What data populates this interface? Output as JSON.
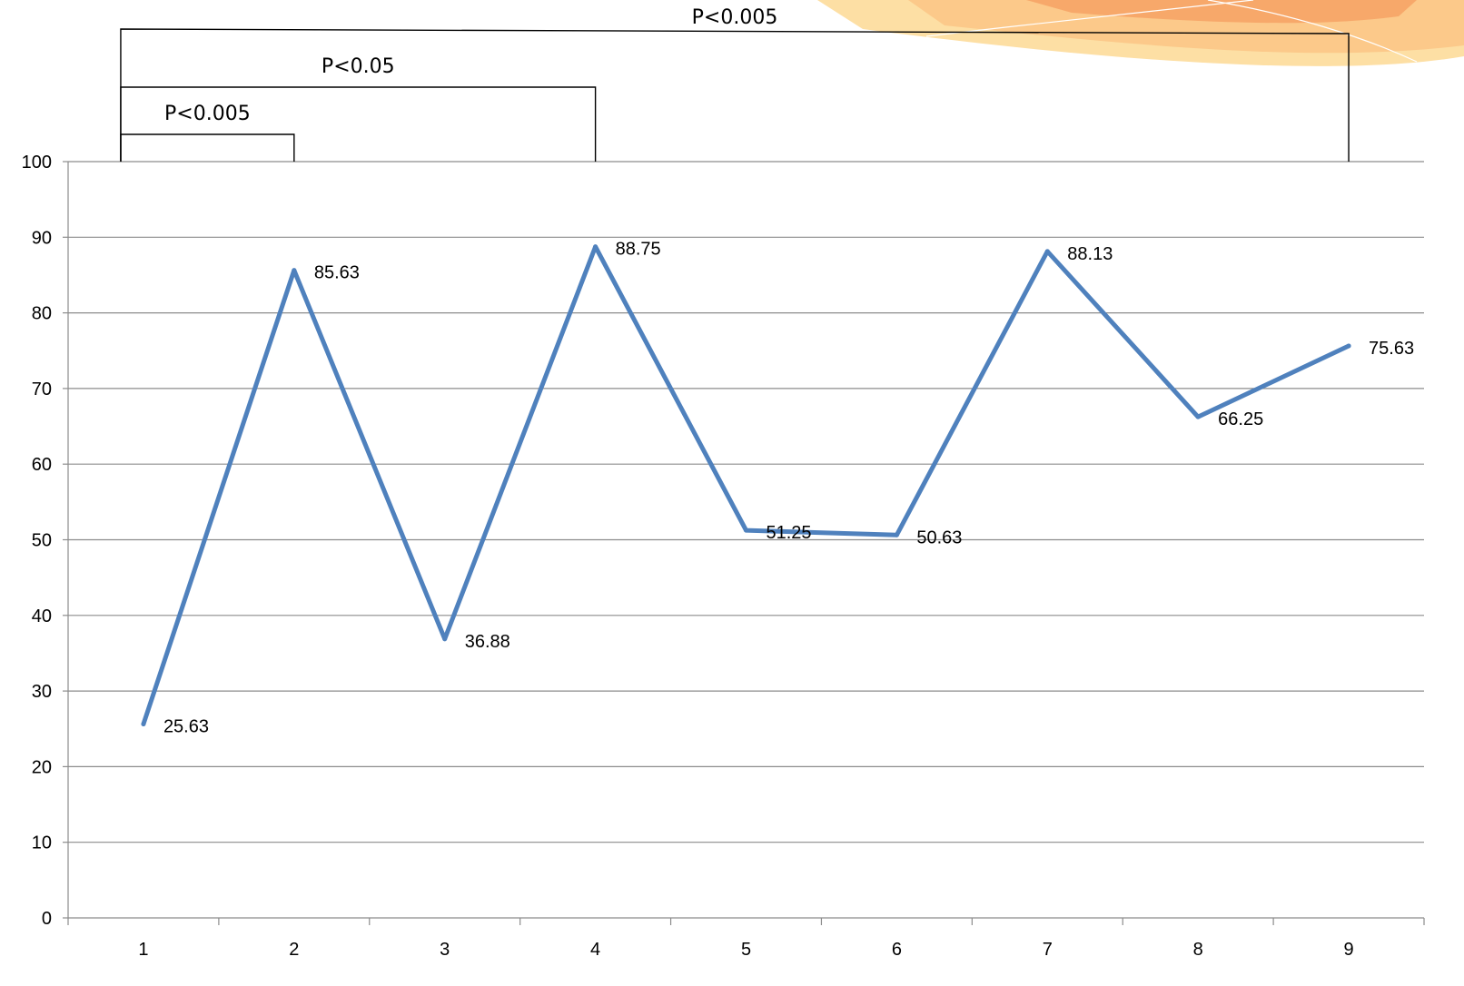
{
  "chart_data": {
    "type": "line",
    "categories": [
      "1",
      "2",
      "3",
      "4",
      "5",
      "6",
      "7",
      "8",
      "9"
    ],
    "series": [
      {
        "values": [
          25.63,
          85.63,
          36.88,
          88.75,
          51.25,
          50.63,
          88.13,
          66.25,
          75.63
        ]
      }
    ],
    "data_labels": [
      "25.63",
      "85.63",
      "36.88",
      "88.75",
      "51.25",
      "50.63",
      "88.13",
      "66.25",
      "75.63"
    ],
    "y_ticks": [
      "0",
      "10",
      "20",
      "30",
      "40",
      "50",
      "60",
      "70",
      "80",
      "90",
      "100"
    ],
    "ylim": [
      0,
      100
    ],
    "grid": true,
    "legend": "none",
    "title": "",
    "xlabel": "",
    "ylabel": "",
    "line_color": "#4F81BD",
    "significance_brackets": [
      {
        "from": "1",
        "to": "2",
        "label": "P<0.005"
      },
      {
        "from": "1",
        "to": "4",
        "label": "P<0.05"
      },
      {
        "from": "1",
        "to": "9",
        "label": "P<0.005"
      }
    ]
  },
  "theme": {
    "decoration_colors": [
      "#F7A86A",
      "#FCC98A",
      "#FDDFA4"
    ]
  }
}
